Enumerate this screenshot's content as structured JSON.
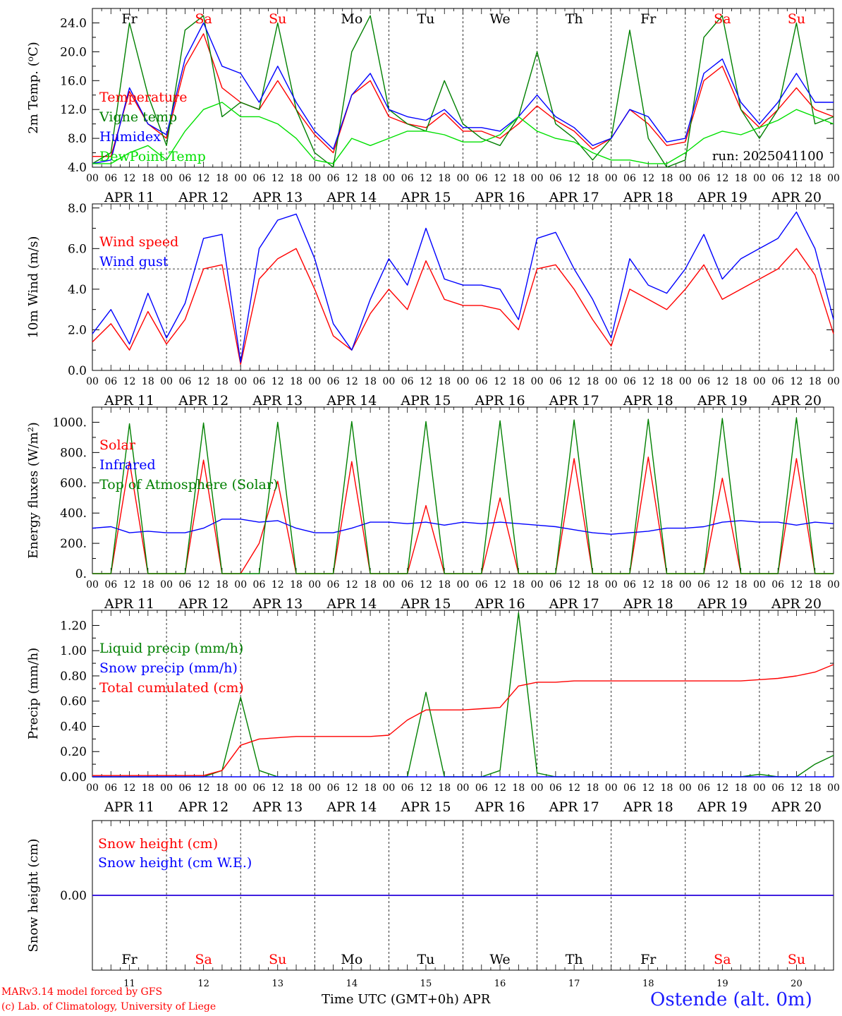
{
  "chart_data": [
    {
      "type": "line",
      "ylabel_parts": [
        "2m Temp. (",
        "o",
        "C)"
      ],
      "ylim": [
        4,
        26
      ],
      "yticks": [
        "4.0",
        "8.0",
        "12.0",
        "16.0",
        "20.0",
        "24.0"
      ],
      "run_label": "run: 2025041100",
      "x_hours": [
        0,
        6,
        12,
        18,
        24,
        30,
        36,
        42,
        48,
        54,
        60,
        66,
        72,
        78,
        84,
        90,
        96,
        102,
        108,
        114,
        120,
        126,
        132,
        138,
        144,
        150,
        156,
        162,
        168,
        174,
        180,
        186,
        192,
        198,
        204,
        210,
        216,
        222,
        228,
        234,
        240
      ],
      "series": [
        {
          "name": "Temperature",
          "color": "#ff0000",
          "values": [
            5.5,
            5.5,
            14.5,
            10,
            8,
            18,
            22.5,
            15,
            13,
            12,
            16,
            12,
            8.5,
            6,
            14,
            16,
            11,
            10,
            9.5,
            11.5,
            9,
            9,
            8,
            10,
            12.5,
            10.5,
            9,
            6.5,
            8,
            12,
            10,
            7,
            7.5,
            16,
            18,
            12,
            9.5,
            12,
            15,
            12,
            11
          ]
        },
        {
          "name": "Vigne temp",
          "color": "#008000",
          "values": [
            4.5,
            6,
            24,
            14,
            7,
            23,
            25,
            11,
            13,
            12,
            24,
            12,
            6,
            4,
            20,
            25,
            12,
            10,
            9,
            16,
            10,
            8,
            7,
            11,
            20,
            10,
            8,
            5,
            8,
            23,
            8,
            4,
            5,
            22,
            25,
            12,
            8,
            12,
            24,
            10,
            11
          ]
        },
        {
          "name": "Humidex",
          "color": "#0000ff",
          "values": [
            4.5,
            5,
            15,
            10,
            8.5,
            19,
            24,
            18,
            17,
            13,
            18,
            13,
            9,
            6.5,
            14,
            17,
            12,
            11,
            10.5,
            12,
            9.5,
            9.5,
            9,
            11,
            14,
            11,
            9.5,
            7,
            8,
            12,
            11,
            7.5,
            8,
            17,
            19,
            13,
            10,
            13,
            17,
            13,
            13
          ]
        },
        {
          "name": "DewPoint Temp",
          "color": "#00e000",
          "values": [
            4.5,
            4.5,
            6,
            7,
            5,
            9,
            12,
            13,
            11,
            11,
            10,
            8,
            5,
            4.5,
            8,
            7,
            8,
            9,
            9,
            8.5,
            7.5,
            7.5,
            8.5,
            11,
            9,
            8,
            7.5,
            6,
            5,
            5,
            4.5,
            4.5,
            6,
            8,
            9,
            8.5,
            9.5,
            10.5,
            12,
            11,
            10
          ]
        }
      ]
    },
    {
      "type": "line",
      "ylabel": "10m Wind (m/s)",
      "ylim": [
        0,
        8.2
      ],
      "yticks": [
        "0.0",
        "2.0",
        "4.0",
        "6.0",
        "8.0"
      ],
      "reference_line": 5.0,
      "x_hours": [
        0,
        6,
        12,
        18,
        24,
        30,
        36,
        42,
        48,
        54,
        60,
        66,
        72,
        78,
        84,
        90,
        96,
        102,
        108,
        114,
        120,
        126,
        132,
        138,
        144,
        150,
        156,
        162,
        168,
        174,
        180,
        186,
        192,
        198,
        204,
        210,
        216,
        222,
        228,
        234,
        240
      ],
      "series": [
        {
          "name": "Wind speed",
          "color": "#ff0000",
          "values": [
            1.4,
            2.3,
            1.0,
            2.9,
            1.3,
            2.5,
            5.0,
            5.2,
            0.3,
            4.5,
            5.5,
            6.0,
            4.0,
            1.7,
            1.0,
            2.8,
            4.0,
            3.0,
            5.4,
            3.5,
            3.2,
            3.2,
            3.0,
            2.0,
            5.0,
            5.2,
            4.0,
            2.5,
            1.2,
            4.0,
            3.5,
            3.0,
            4.0,
            5.2,
            3.5,
            4.0,
            4.5,
            5.0,
            6.0,
            4.7,
            1.8
          ]
        },
        {
          "name": "Wind gust",
          "color": "#0000ff",
          "values": [
            1.8,
            3.0,
            1.3,
            3.8,
            1.6,
            3.3,
            6.5,
            6.7,
            0.4,
            6.0,
            7.4,
            7.7,
            5.5,
            2.3,
            1.0,
            3.5,
            5.5,
            4.2,
            7.0,
            4.5,
            4.2,
            4.2,
            4.0,
            2.5,
            6.5,
            6.8,
            5.0,
            3.5,
            1.6,
            5.5,
            4.2,
            3.8,
            5.0,
            6.7,
            4.5,
            5.5,
            6.0,
            6.5,
            7.8,
            6.0,
            2.5
          ]
        }
      ]
    },
    {
      "type": "line",
      "ylabel": "Energy fluxes (W/m²)",
      "ylim": [
        0,
        1100
      ],
      "yticks": [
        "0.",
        "200.",
        "400.",
        "600.",
        "800.",
        "1000."
      ],
      "x_hours": [
        0,
        6,
        12,
        18,
        24,
        30,
        36,
        42,
        48,
        54,
        60,
        66,
        72,
        78,
        84,
        90,
        96,
        102,
        108,
        114,
        120,
        126,
        132,
        138,
        144,
        150,
        156,
        162,
        168,
        174,
        180,
        186,
        192,
        198,
        204,
        210,
        216,
        222,
        228,
        234,
        240
      ],
      "series": [
        {
          "name": "Solar",
          "color": "#ff0000",
          "values": [
            0,
            0,
            740,
            0,
            0,
            0,
            750,
            0,
            0,
            200,
            610,
            0,
            0,
            0,
            740,
            0,
            0,
            0,
            450,
            0,
            0,
            0,
            500,
            0,
            0,
            0,
            760,
            0,
            0,
            0,
            770,
            0,
            0,
            0,
            630,
            0,
            0,
            0,
            760,
            0,
            0
          ]
        },
        {
          "name": "Infrared",
          "color": "#0000ff",
          "values": [
            300,
            310,
            270,
            280,
            270,
            270,
            300,
            360,
            360,
            340,
            350,
            300,
            270,
            270,
            300,
            340,
            340,
            330,
            340,
            320,
            340,
            330,
            340,
            330,
            320,
            310,
            290,
            270,
            260,
            270,
            280,
            300,
            300,
            310,
            340,
            350,
            340,
            340,
            320,
            340,
            330
          ]
        },
        {
          "name": "Top of Atmosphere (Solar)",
          "color": "#008000",
          "values": [
            0,
            0,
            990,
            0,
            0,
            0,
            995,
            0,
            0,
            0,
            1000,
            0,
            0,
            0,
            1005,
            0,
            0,
            0,
            1005,
            0,
            0,
            0,
            1010,
            0,
            0,
            0,
            1015,
            0,
            0,
            0,
            1020,
            0,
            0,
            0,
            1025,
            0,
            0,
            0,
            1030,
            0,
            0
          ]
        }
      ]
    },
    {
      "type": "line",
      "ylabel": "Precip (mm/h)",
      "ylim": [
        0,
        1.32
      ],
      "yticks": [
        "0.00",
        "0.20",
        "0.40",
        "0.60",
        "0.80",
        "1.00",
        "1.20"
      ],
      "x_hours": [
        0,
        6,
        12,
        18,
        24,
        30,
        36,
        42,
        48,
        54,
        60,
        66,
        72,
        78,
        84,
        90,
        96,
        102,
        108,
        114,
        120,
        126,
        132,
        138,
        144,
        150,
        156,
        162,
        168,
        174,
        180,
        186,
        192,
        198,
        204,
        210,
        216,
        222,
        228,
        234,
        240
      ],
      "series": [
        {
          "name": "Liquid precip (mm/h)",
          "color": "#008000",
          "values": [
            0,
            0,
            0,
            0,
            0,
            0,
            0,
            0.05,
            0.63,
            0.05,
            0,
            0,
            0,
            0,
            0,
            0,
            0,
            0,
            0.67,
            0,
            0,
            0,
            0.05,
            1.3,
            0.03,
            0,
            0,
            0,
            0,
            0,
            0,
            0,
            0,
            0,
            0,
            0,
            0.02,
            0,
            0,
            0.1,
            0.17
          ]
        },
        {
          "name": "Snow precip (mm/h)",
          "color": "#0000ff",
          "values": [
            0,
            0,
            0,
            0,
            0,
            0,
            0,
            0,
            0,
            0,
            0,
            0,
            0,
            0,
            0,
            0,
            0,
            0,
            0,
            0,
            0,
            0,
            0,
            0,
            0,
            0,
            0,
            0,
            0,
            0,
            0,
            0,
            0,
            0,
            0,
            0,
            0,
            0,
            0,
            0,
            0
          ]
        },
        {
          "name": "Total cumulated (cm)",
          "color": "#ff0000",
          "values": [
            0.01,
            0.01,
            0.01,
            0.01,
            0.01,
            0.01,
            0.01,
            0.05,
            0.25,
            0.3,
            0.31,
            0.32,
            0.32,
            0.32,
            0.32,
            0.32,
            0.33,
            0.45,
            0.53,
            0.53,
            0.53,
            0.54,
            0.55,
            0.72,
            0.75,
            0.75,
            0.76,
            0.76,
            0.76,
            0.76,
            0.76,
            0.76,
            0.76,
            0.76,
            0.76,
            0.76,
            0.77,
            0.78,
            0.8,
            0.83,
            0.89
          ]
        }
      ]
    },
    {
      "type": "line",
      "ylabel": "Snow height (cm)",
      "ylim": [
        -1,
        1
      ],
      "yticks": [
        "0.00"
      ],
      "x_hours": [
        0,
        240
      ],
      "series": [
        {
          "name": "Snow height (cm)",
          "color": "#ff0000",
          "values": [
            0,
            0
          ]
        },
        {
          "name": "Snow height (cm W.E.)",
          "color": "#0000ff",
          "values": [
            0,
            0
          ]
        }
      ]
    }
  ],
  "days": [
    {
      "label": "APR 11",
      "abbr": "Fr",
      "num": "11",
      "color": "#000000"
    },
    {
      "label": "APR 12",
      "abbr": "Sa",
      "num": "12",
      "color": "#ff0000"
    },
    {
      "label": "APR 13",
      "abbr": "Su",
      "num": "13",
      "color": "#ff0000"
    },
    {
      "label": "APR 14",
      "abbr": "Mo",
      "num": "14",
      "color": "#000000"
    },
    {
      "label": "APR 15",
      "abbr": "Tu",
      "num": "15",
      "color": "#000000"
    },
    {
      "label": "APR 16",
      "abbr": "We",
      "num": "16",
      "color": "#000000"
    },
    {
      "label": "APR 17",
      "abbr": "Th",
      "num": "17",
      "color": "#000000"
    },
    {
      "label": "APR 18",
      "abbr": "Fr",
      "num": "18",
      "color": "#000000"
    },
    {
      "label": "APR 19",
      "abbr": "Sa",
      "num": "19",
      "color": "#ff0000"
    },
    {
      "label": "APR 20",
      "abbr": "Su",
      "num": "20",
      "color": "#ff0000"
    }
  ],
  "hour_ticks": [
    "00",
    "06",
    "12",
    "18"
  ],
  "hour_end": "00",
  "footer": {
    "credit_line1": "MARv3.14 model forced by GFS",
    "credit_line2": "(c) Lab. of Climatology, University of Liege",
    "xaxis_title": "Time UTC (GMT+0h) APR",
    "station": "Ostende (alt. 0m)"
  }
}
